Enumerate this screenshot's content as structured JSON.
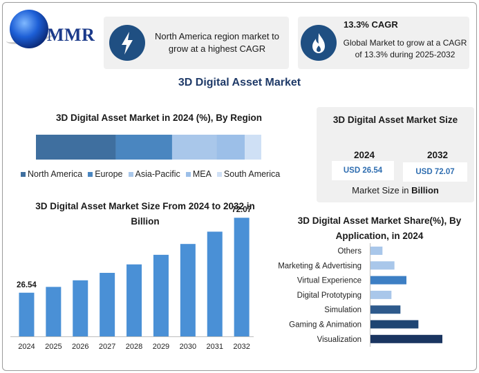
{
  "logo": {
    "text": "MMR"
  },
  "cards": {
    "card1": {
      "icon": "lightning-icon",
      "text": "North America region market to grow at a highest CAGR"
    },
    "card2": {
      "icon": "flame-icon",
      "heading": "13.3% CAGR",
      "text": "Global Market to grow at a CAGR of 13.3% during 2025-2032"
    }
  },
  "title": "3D Digital Asset Market",
  "size_panel": {
    "title": "3D Digital Asset Market Size",
    "year1": "2024",
    "value1": "USD 26.54",
    "year2": "2032",
    "value2": "USD 72.07",
    "footer_prefix": "Market Size in ",
    "footer_bold": "Billion"
  },
  "chart_data": [
    {
      "type": "bar",
      "orientation": "stacked-horizontal",
      "title": "3D Digital Asset Market in 2024 (%), By Region",
      "categories": [
        "North America",
        "Europe",
        "Asia-Pacific",
        "MEA",
        "South America"
      ],
      "values": [
        34,
        24,
        19,
        12,
        7
      ],
      "colors": [
        "#3f6f9f",
        "#4a86c0",
        "#a9c7ea",
        "#9cbfe8",
        "#cfe0f5"
      ],
      "legend": "bottom"
    },
    {
      "type": "bar",
      "title": "3D Digital Asset Market Size From 2024 to 2032 in Billion",
      "categories": [
        "2024",
        "2025",
        "2026",
        "2027",
        "2028",
        "2029",
        "2030",
        "2031",
        "2032"
      ],
      "values": [
        26.54,
        30.07,
        34.07,
        38.6,
        43.74,
        49.56,
        56.15,
        63.62,
        72.07
      ],
      "data_labels": [
        "26.54",
        "",
        "",
        "",
        "",
        "",
        "",
        "",
        "72.07"
      ],
      "ylim": [
        0,
        80
      ],
      "color": "#4a90d6",
      "grid": false
    },
    {
      "type": "bar",
      "orientation": "horizontal",
      "title": "3D Digital Asset Market Share(%), By Application, in 2024",
      "categories": [
        "Others",
        "Marketing & Advertising",
        "Virtual Experience",
        "Digital Prototyping",
        "Simulation",
        "Gaming & Animation",
        "Visualization"
      ],
      "values": [
        4,
        8,
        12,
        7,
        10,
        16,
        24
      ],
      "colors": [
        "#a9c7ea",
        "#a9c7ea",
        "#3d7fc4",
        "#a9c7ea",
        "#2e5a8c",
        "#1e4573",
        "#1a3560"
      ],
      "grid": false
    }
  ]
}
